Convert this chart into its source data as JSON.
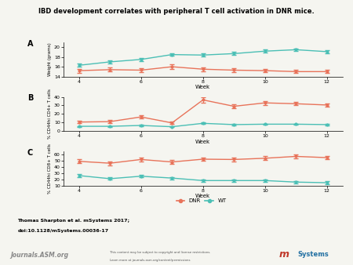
{
  "title": "IBD development correlates with peripheral T cell activation in DNR mice.",
  "panel_A": {
    "label": "A",
    "ylabel": "Weight (grams)",
    "ylim": [
      14,
      21
    ],
    "yticks": [
      14,
      16,
      18,
      20
    ],
    "weeks": [
      4,
      5,
      6,
      7,
      8,
      9,
      10,
      11,
      12
    ],
    "DNR": {
      "mean": [
        15.2,
        15.4,
        15.3,
        16.0,
        15.5,
        15.3,
        15.2,
        15.0,
        15.0
      ],
      "err": [
        0.4,
        0.4,
        0.4,
        0.5,
        0.4,
        0.4,
        0.3,
        0.3,
        0.3
      ]
    },
    "WT": {
      "mean": [
        16.3,
        17.0,
        17.5,
        18.5,
        18.4,
        18.7,
        19.2,
        19.5,
        19.1
      ],
      "err": [
        0.3,
        0.3,
        0.3,
        0.3,
        0.3,
        0.3,
        0.3,
        0.3,
        0.3
      ]
    }
  },
  "panel_B": {
    "label": "B",
    "ylabel": "% CD44hi CD4+ T cells",
    "ylim": [
      0,
      40
    ],
    "yticks": [
      0,
      10,
      20,
      30,
      40
    ],
    "weeks": [
      4,
      5,
      6,
      7,
      8,
      9,
      10,
      11,
      12
    ],
    "DNR": {
      "mean": [
        10.5,
        11.0,
        16.5,
        9.5,
        36.5,
        29.0,
        33.0,
        32.0,
        30.5
      ],
      "err": [
        1.5,
        1.5,
        2.0,
        1.5,
        3.0,
        2.5,
        2.5,
        2.0,
        2.0
      ]
    },
    "WT": {
      "mean": [
        5.5,
        5.5,
        6.5,
        5.0,
        9.0,
        7.5,
        8.0,
        8.0,
        7.5
      ],
      "err": [
        0.5,
        0.5,
        0.8,
        0.5,
        1.0,
        0.8,
        0.8,
        0.8,
        0.8
      ]
    }
  },
  "panel_C": {
    "label": "C",
    "ylabel": "% CD44hi CD8+ T cells",
    "ylim": [
      10,
      65
    ],
    "yticks": [
      10,
      20,
      30,
      40,
      50,
      60
    ],
    "weeks": [
      4,
      5,
      6,
      7,
      8,
      9,
      10,
      11,
      12
    ],
    "DNR": {
      "mean": [
        49.0,
        46.0,
        52.0,
        48.0,
        52.5,
        52.0,
        54.0,
        57.0,
        55.0
      ],
      "err": [
        3.0,
        3.0,
        3.0,
        3.0,
        3.0,
        3.0,
        3.0,
        3.0,
        3.0
      ]
    },
    "WT": {
      "mean": [
        26.0,
        21.0,
        25.0,
        22.0,
        18.0,
        18.0,
        18.0,
        15.5,
        14.5
      ],
      "err": [
        2.0,
        2.0,
        2.0,
        2.0,
        2.0,
        2.0,
        2.0,
        2.0,
        2.0
      ]
    }
  },
  "color_DNR": "#E8735A",
  "color_WT": "#4BBFB5",
  "footer_text1": "Thomas Sharpton et al. mSystems 2017;",
  "footer_text2": "doi:10.1128/mSystems.00036-17",
  "bg_color": "#f5f5f0",
  "banner_color": "#e0e0e0"
}
